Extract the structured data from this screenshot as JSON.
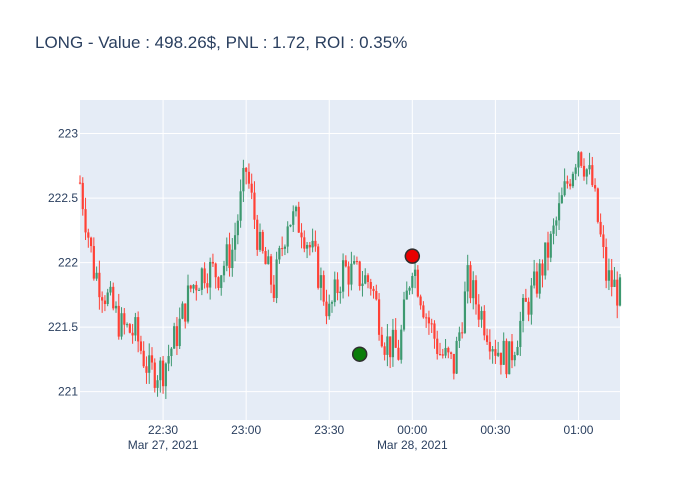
{
  "chart_data": {
    "type": "candlestick",
    "title": "LONG - Value : 498.26$, PNL : 1.72, ROI : 0.35%",
    "xlabel": "",
    "ylabel": "",
    "grid": true,
    "ylim": [
      220.78,
      223.26
    ],
    "xlim": [
      "2021-03-27T22:00",
      "2021-03-28T01:15"
    ],
    "y_ticks": [
      221,
      221.5,
      222,
      222.5,
      223
    ],
    "y_tick_labels": [
      "221",
      "221.5",
      "222",
      "222.5",
      "223"
    ],
    "x_ticks": [
      {
        "time": "2021-03-27T22:30",
        "label": "22:30",
        "sublabel": "Mar 27, 2021"
      },
      {
        "time": "2021-03-27T23:00",
        "label": "23:00",
        "sublabel": ""
      },
      {
        "time": "2021-03-27T23:30",
        "label": "23:30",
        "sublabel": ""
      },
      {
        "time": "2021-03-28T00:00",
        "label": "00:00",
        "sublabel": "Mar 28, 2021"
      },
      {
        "time": "2021-03-28T00:30",
        "label": "00:30",
        "sublabel": ""
      },
      {
        "time": "2021-03-28T01:00",
        "label": "01:00",
        "sublabel": ""
      }
    ],
    "increasing_color": "#3d9970",
    "decreasing_color": "#ff4136",
    "bar_interval_minutes": 1,
    "series": [
      {
        "start": "2021-03-27T22:00",
        "close_path": [
          [
            "2021-03-27T22:00",
            222.62
          ],
          [
            "2021-03-27T22:05",
            221.95
          ],
          [
            "2021-03-27T22:10",
            221.72
          ],
          [
            "2021-03-27T22:15",
            221.5
          ],
          [
            "2021-03-27T22:20",
            221.45
          ],
          [
            "2021-03-27T22:25",
            221.15
          ],
          [
            "2021-03-27T22:30",
            221.18
          ],
          [
            "2021-03-27T22:35",
            221.45
          ],
          [
            "2021-03-27T22:40",
            221.8
          ],
          [
            "2021-03-27T22:45",
            221.95
          ],
          [
            "2021-03-27T22:50",
            221.92
          ],
          [
            "2021-03-27T22:55",
            222.1
          ],
          [
            "2021-03-27T23:00",
            222.72
          ],
          [
            "2021-03-27T23:05",
            222.1
          ],
          [
            "2021-03-27T23:10",
            221.8
          ],
          [
            "2021-03-27T23:15",
            222.35
          ],
          [
            "2021-03-27T23:20",
            222.3
          ],
          [
            "2021-03-27T23:25",
            222.0
          ],
          [
            "2021-03-27T23:30",
            221.6
          ],
          [
            "2021-03-27T23:35",
            221.95
          ],
          [
            "2021-03-27T23:40",
            221.9
          ],
          [
            "2021-03-27T23:45",
            221.85
          ],
          [
            "2021-03-27T23:50",
            221.4
          ],
          [
            "2021-03-27T23:55",
            221.3
          ],
          [
            "2021-03-28T00:00",
            222.02
          ],
          [
            "2021-03-28T00:05",
            221.6
          ],
          [
            "2021-03-28T00:10",
            221.3
          ],
          [
            "2021-03-28T00:15",
            221.2
          ],
          [
            "2021-03-28T00:20",
            221.85
          ],
          [
            "2021-03-28T00:25",
            221.6
          ],
          [
            "2021-03-28T00:30",
            221.35
          ],
          [
            "2021-03-28T00:35",
            221.25
          ],
          [
            "2021-03-28T00:40",
            221.6
          ],
          [
            "2021-03-28T00:45",
            221.85
          ],
          [
            "2021-03-28T00:50",
            222.15
          ],
          [
            "2021-03-28T00:55",
            222.55
          ],
          [
            "2021-03-28T01:00",
            222.9
          ],
          [
            "2021-03-28T01:05",
            222.6
          ],
          [
            "2021-03-28T01:10",
            221.9
          ],
          [
            "2021-03-28T01:15",
            221.75
          ]
        ]
      }
    ],
    "trade_markers": [
      {
        "type": "entry",
        "time": "2021-03-28T23:41",
        "time_fixed": "2021-03-27T23:41",
        "price": 221.29,
        "color": "#0a7d0a"
      },
      {
        "type": "exit",
        "time": "2021-03-28T00:00",
        "price": 222.05,
        "color": "#e80000"
      }
    ]
  }
}
